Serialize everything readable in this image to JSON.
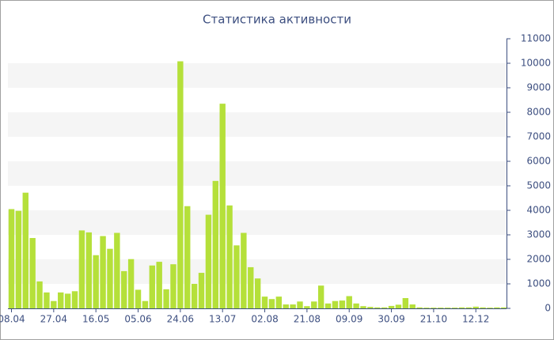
{
  "chart_data": {
    "type": "bar",
    "title": "Статистика активности",
    "categories": [
      "08.04",
      null,
      null,
      null,
      null,
      null,
      "27.04",
      null,
      null,
      null,
      null,
      null,
      "16.05",
      null,
      null,
      null,
      null,
      null,
      "05.06",
      null,
      null,
      null,
      null,
      null,
      "24.06",
      null,
      null,
      null,
      null,
      null,
      "13.07",
      null,
      null,
      null,
      null,
      null,
      "02.08",
      null,
      null,
      null,
      null,
      null,
      "21.08",
      null,
      null,
      null,
      null,
      null,
      "09.09",
      null,
      null,
      null,
      null,
      null,
      "30.09",
      null,
      null,
      null,
      null,
      null,
      "21.10",
      null,
      null,
      null,
      null,
      null,
      "12.12",
      null,
      null,
      null,
      null
    ],
    "values": [
      4050,
      3980,
      4720,
      2870,
      1100,
      650,
      300,
      650,
      600,
      700,
      3180,
      3100,
      2170,
      2950,
      2430,
      3080,
      1520,
      2010,
      760,
      300,
      1750,
      1900,
      780,
      1800,
      10080,
      4170,
      1000,
      1450,
      3820,
      5200,
      8350,
      4200,
      2570,
      3080,
      1680,
      1220,
      480,
      380,
      480,
      160,
      160,
      280,
      90,
      280,
      930,
      200,
      300,
      320,
      500,
      200,
      90,
      60,
      40,
      40,
      100,
      150,
      420,
      160,
      40,
      30,
      30,
      30,
      30,
      30,
      40,
      40,
      70,
      40,
      30,
      40,
      40
    ],
    "color": "#b5e03a",
    "ylim": [
      0,
      11000
    ],
    "yticks": [
      0,
      1000,
      2000,
      3000,
      4000,
      5000,
      6000,
      7000,
      8000,
      9000,
      10000,
      11000
    ],
    "grid": "bands",
    "y_axis_side": "right"
  }
}
